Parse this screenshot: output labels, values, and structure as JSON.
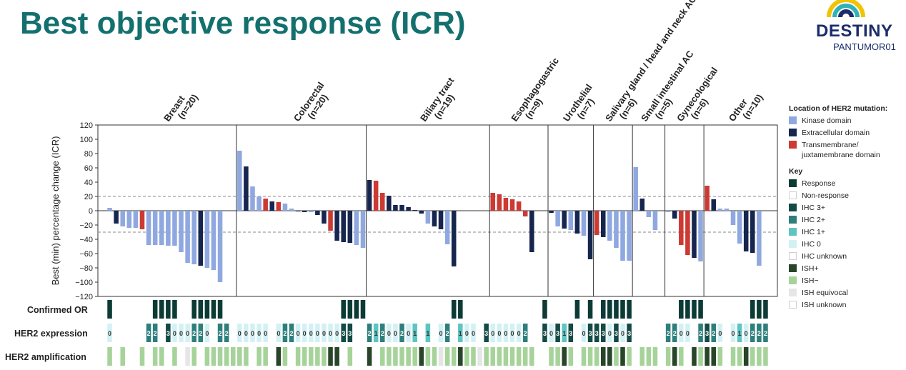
{
  "title": "Best objective response (ICR)",
  "logo": {
    "word": "DESTINY",
    "sub": "PANTUMOR01"
  },
  "colors": {
    "kinase": "#8fa8e0",
    "extracellular": "#16264f",
    "transmembrane": "#cc3a33",
    "response": "#0c3b36",
    "ihc3": "#144a45",
    "ihc2": "#2d7f7c",
    "ihc1": "#5ec5c3",
    "ihc0": "#d3f1f4",
    "ish_pos": "#28452a",
    "ish_neg": "#a6d39a",
    "ish_eq": "#e6e6e6"
  },
  "legend": {
    "location_title": "Location of HER2 mutation:",
    "location_items": [
      {
        "label": "Kinase domain",
        "color": "#8fa8e0"
      },
      {
        "label": "Extracellular domain",
        "color": "#16264f"
      },
      {
        "label": "Transmembrane/ juxtamembrane domain",
        "color": "#cc3a33"
      }
    ],
    "key_title": "Key",
    "key_items": [
      {
        "label": "Response",
        "color": "#0c3b36"
      },
      {
        "label": "Non-response",
        "color": "#ffffff"
      },
      {
        "label": "IHC 3+",
        "color": "#144a45"
      },
      {
        "label": "IHC 2+",
        "color": "#2d7f7c"
      },
      {
        "label": "IHC 1+",
        "color": "#5ec5c3"
      },
      {
        "label": "IHC 0",
        "color": "#d3f1f4"
      },
      {
        "label": "IHC unknown",
        "color": "#ffffff"
      },
      {
        "label": "ISH+",
        "color": "#28452a"
      },
      {
        "label": "ISH−",
        "color": "#a6d39a"
      },
      {
        "label": "ISH equivocal",
        "color": "#e6e6e6"
      },
      {
        "label": "ISH unknown",
        "color": "#ffffff"
      }
    ]
  },
  "row_labels": {
    "or": "Confirmed OR",
    "her2_expr": "HER2 expression",
    "her2_amp": "HER2 amplification"
  },
  "chart_data": {
    "type": "bar",
    "ylabel": "Best (min) percentage change (ICR)",
    "ylim": [
      -120,
      120
    ],
    "yticks": [
      120,
      100,
      80,
      60,
      40,
      20,
      0,
      -20,
      -40,
      -60,
      -80,
      -100,
      -120
    ],
    "reference_lines": [
      20,
      -30
    ],
    "groups": [
      {
        "name": "Breast",
        "n": "(n=20)",
        "values": [
          4,
          -18,
          -22,
          -24,
          -24,
          -26,
          -48,
          -48,
          -48,
          -49,
          -49,
          -58,
          -73,
          -75,
          -77,
          -80,
          -83,
          -100,
          null,
          null
        ],
        "domains": [
          "K",
          "E",
          "K",
          "K",
          "K",
          "T",
          "K",
          "K",
          "K",
          "K",
          "K",
          "K",
          "K",
          "K",
          "E",
          "K",
          "K",
          "K",
          "K",
          "K"
        ],
        "or": [
          1,
          0,
          0,
          0,
          0,
          0,
          0,
          1,
          1,
          1,
          1,
          0,
          0,
          1,
          1,
          1,
          1,
          1,
          0,
          0
        ],
        "ihc": [
          "0",
          "",
          "",
          "",
          "",
          "",
          "2",
          "2",
          "",
          "3",
          "0",
          "0",
          "0",
          "2",
          "2",
          "0",
          "",
          "2",
          "2",
          ""
        ],
        "ish": [
          "-",
          "",
          "-",
          "",
          "",
          "-",
          "",
          "-",
          "-",
          "",
          "-",
          "",
          "e",
          "-",
          "",
          "-",
          "-",
          "-",
          "-",
          "-"
        ]
      },
      {
        "name": "Colorectal",
        "n": "(n=20)",
        "values": [
          84,
          62,
          34,
          20,
          17,
          13,
          12,
          10,
          3,
          0,
          -2,
          -2,
          -6,
          -18,
          -28,
          -42,
          -44,
          -45,
          -48,
          -52
        ],
        "domains": [
          "K",
          "E",
          "K",
          "K",
          "T",
          "E",
          "T",
          "K",
          "K",
          "E",
          "E",
          "K",
          "E",
          "E",
          "T",
          "E",
          "E",
          "E",
          "K",
          "K"
        ],
        "or": [
          0,
          0,
          0,
          0,
          0,
          0,
          0,
          0,
          0,
          0,
          0,
          0,
          0,
          0,
          0,
          0,
          1,
          1,
          1,
          1
        ],
        "ihc": [
          "0",
          "0",
          "0",
          "0",
          "0",
          "",
          "0",
          "2",
          "2",
          "0",
          "0",
          "0",
          "0",
          "0",
          "0",
          "0",
          "3",
          "3",
          "",
          ""
        ],
        "ish": [
          "-",
          "-",
          "",
          "-",
          "-",
          "",
          "+",
          "-",
          "",
          "-",
          "-",
          "-",
          "-",
          "-",
          "+",
          "+",
          "",
          "-",
          "",
          ""
        ]
      },
      {
        "name": "Biliary tract",
        "n": "(n=19)",
        "values": [
          43,
          42,
          25,
          21,
          8,
          8,
          5,
          1,
          -4,
          -18,
          -22,
          -26,
          -47,
          -78,
          null,
          null,
          null,
          null,
          null
        ],
        "domains": [
          "E",
          "T",
          "T",
          "E",
          "E",
          "E",
          "E",
          "E",
          "E",
          "K",
          "E",
          "E",
          "K",
          "E",
          "K",
          "K",
          "K",
          "K",
          "K"
        ],
        "or": [
          0,
          0,
          0,
          0,
          0,
          0,
          0,
          0,
          0,
          0,
          0,
          0,
          0,
          1,
          1,
          0,
          0,
          0,
          0
        ],
        "ihc": [
          "2",
          "1",
          "2",
          "0",
          "0",
          "2",
          "0",
          "1",
          "",
          "1",
          "",
          "0",
          "2",
          "",
          "1",
          "0",
          "0",
          "",
          "3"
        ],
        "ish": [
          "+",
          "",
          "-",
          "-",
          "-",
          "-",
          "-",
          "-",
          "+",
          "-",
          "-",
          "e",
          "-",
          "-",
          "+",
          "-",
          "-",
          "e",
          "-"
        ]
      },
      {
        "name": "Esophagogastric",
        "n": "(n=9)",
        "values": [
          25,
          23,
          18,
          16,
          13,
          -8,
          -58,
          null,
          null
        ],
        "domains": [
          "T",
          "T",
          "T",
          "T",
          "T",
          "T",
          "E",
          "K",
          "K"
        ],
        "or": [
          0,
          0,
          0,
          0,
          0,
          0,
          0,
          0,
          1
        ],
        "ihc": [
          "0",
          "0",
          "0",
          "0",
          "0",
          "2",
          "",
          "",
          "3"
        ],
        "ish": [
          "-",
          "-",
          "-",
          "-",
          "-",
          "-",
          "-",
          "",
          ""
        ]
      },
      {
        "name": "Urothelial",
        "n": "(n=7)",
        "values": [
          -3,
          -22,
          -25,
          -27,
          -32,
          -35,
          -68
        ],
        "domains": [
          "E",
          "K",
          "E",
          "K",
          "E",
          "K",
          "E"
        ],
        "or": [
          0,
          0,
          0,
          0,
          1,
          0,
          1
        ],
        "ihc": [
          "0",
          "3",
          "1",
          "3",
          "",
          "0",
          "3"
        ],
        "ish": [
          "-",
          "-",
          "+",
          "-",
          "",
          "-",
          "-"
        ]
      },
      {
        "name": "Salivary gland / head and neck AC",
        "n": "(n=6)",
        "values": [
          -34,
          -37,
          -42,
          -52,
          -70,
          -70
        ],
        "domains": [
          "T",
          "E",
          "K",
          "K",
          "K",
          "K"
        ],
        "or": [
          0,
          1,
          1,
          1,
          1,
          1
        ],
        "ihc": [
          "3",
          "3",
          "0",
          "3",
          "0",
          "3"
        ],
        "ish": [
          "-",
          "+",
          "+",
          "-",
          "+",
          "-"
        ]
      },
      {
        "name": "Small intestinal AC",
        "n": "(n=5)",
        "values": [
          61,
          17,
          -9,
          -27,
          null
        ],
        "domains": [
          "K",
          "E",
          "K",
          "K",
          "K"
        ],
        "or": [
          0,
          0,
          0,
          0,
          0
        ],
        "ihc": [
          "",
          "",
          "",
          "",
          ""
        ],
        "ish": [
          "",
          "-",
          "-",
          "-",
          ""
        ]
      },
      {
        "name": "Gynecological",
        "n": "(n=6)",
        "values": [
          -2,
          -11,
          -48,
          -62,
          -66,
          -71
        ],
        "domains": [
          "K",
          "E",
          "T",
          "T",
          "E",
          "K"
        ],
        "or": [
          0,
          0,
          1,
          1,
          1,
          1
        ],
        "ihc": [
          "2",
          "2",
          "0",
          "0",
          "",
          "2"
        ],
        "ish": [
          "-",
          "+",
          "-",
          "",
          "+",
          "-"
        ]
      },
      {
        "name": "Other",
        "n": "(n=10)",
        "values": [
          35,
          16,
          3,
          3,
          -20,
          -46,
          -57,
          -59,
          -77,
          null
        ],
        "domains": [
          "T",
          "E",
          "K",
          "K",
          "K",
          "K",
          "E",
          "E",
          "K",
          "K"
        ],
        "or": [
          0,
          0,
          0,
          0,
          0,
          0,
          0,
          1,
          1,
          1
        ],
        "ihc": [
          "3",
          "2",
          "0",
          "",
          "0",
          "1",
          "0",
          "2",
          "2",
          "2"
        ],
        "ish": [
          "+",
          "+",
          "-",
          "",
          "-",
          "-",
          "+",
          "-",
          "-",
          "-"
        ]
      }
    ]
  }
}
